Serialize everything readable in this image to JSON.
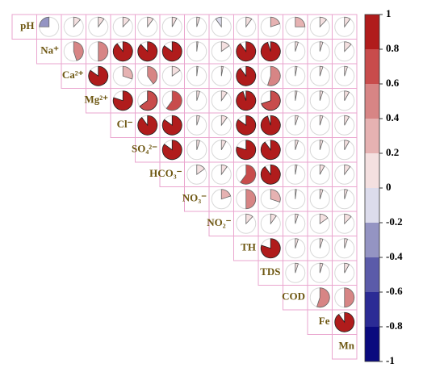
{
  "chart_data": {
    "type": "correlation-pie",
    "variables": [
      "pH",
      "Na⁺",
      "Ca²⁺",
      "Mg²⁺",
      "Cl⁻",
      "SO₄²⁻",
      "HCO₃⁻",
      "NO₃⁻",
      "NO₂⁻",
      "TH",
      "TDS",
      "COD",
      "Fe",
      "Mn"
    ],
    "values": [
      [
        -0.25,
        0.12,
        0.1,
        0.12,
        0.1,
        0.08,
        0.05,
        -0.1,
        0.1,
        0.2,
        0.25,
        0.12,
        0.1
      ],
      [
        0.45,
        0.5,
        0.9,
        0.88,
        0.85,
        0.02,
        0.15,
        0.9,
        0.95,
        0.05,
        0.05,
        0.12
      ],
      [
        0.85,
        0.3,
        0.4,
        0.15,
        0.02,
        0.03,
        0.9,
        0.55,
        0.03,
        0.05,
        0.05
      ],
      [
        0.8,
        0.65,
        0.6,
        0.05,
        0.1,
        0.95,
        0.7,
        0.03,
        0.05,
        0.08
      ],
      [
        0.9,
        0.85,
        0.05,
        0.1,
        0.85,
        0.95,
        0.05,
        0.05,
        0.08
      ],
      [
        0.85,
        0.05,
        0.08,
        0.8,
        0.9,
        0.05,
        0.05,
        0.08
      ],
      [
        0.15,
        0.1,
        0.6,
        0.9,
        0.03,
        0.08,
        0.1
      ],
      [
        0.2,
        0.5,
        0.3,
        0.02,
        0.05,
        0.05
      ],
      [
        0.12,
        0.1,
        0.05,
        0.15,
        0.12
      ],
      [
        0.8,
        0.05,
        0.05,
        0.05
      ],
      [
        0.05,
        0.05,
        0.08
      ],
      [
        0.55,
        0.5
      ],
      [
        0.9
      ]
    ],
    "colors": [
      "#0a0a7e",
      "#2b2b95",
      "#5b5ba9",
      "#9494c3",
      "#dcdcec",
      "#f4e0e0",
      "#e6b2b2",
      "#d78585",
      "#c84c4c",
      "#b01c1c"
    ],
    "ylim": [
      -1,
      1
    ],
    "yticks": [
      -1,
      -0.8,
      -0.6,
      -0.4,
      -0.2,
      0,
      0.2,
      0.4,
      0.6,
      0.8,
      1
    ]
  }
}
